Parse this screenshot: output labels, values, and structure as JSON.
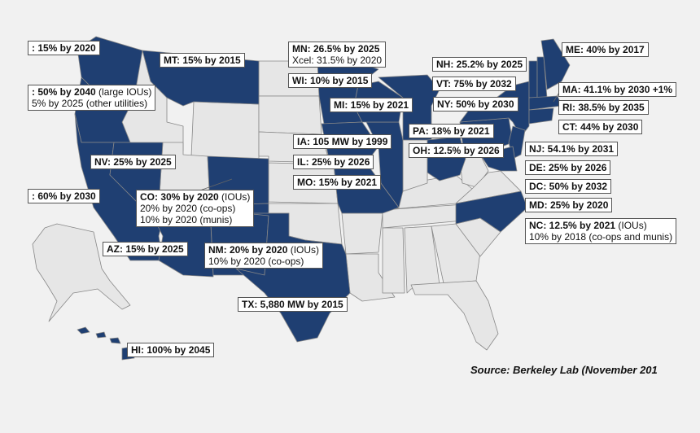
{
  "colors": {
    "rps_state": "#1f3f72",
    "other_state": "#e6e6e6",
    "border": "#888888",
    "background": "#f1f1f1"
  },
  "labels": {
    "wa": ": 15% by 2020",
    "mt": "MT: 15% by 2015",
    "mn_1": "MN: 26.5% by 2025",
    "mn_2": "Xcel: 31.5% by 2020",
    "me": "ME: 40% by 2017",
    "nh": "NH: 25.2% by 2025",
    "wi": "WI: 10% by 2015",
    "vt": "VT: 75% by 2032",
    "or_1a": ": 50% by 2040",
    "or_1b": " (large IOUs)",
    "or_2": "5% by 2025 (other utilities)",
    "mi": "MI: 15% by 2021",
    "ny": "NY: 50% by 2030",
    "ma": "MA: 41.1% by 2030 +1%",
    "ri": "RI: 38.5% by 2035",
    "ct": "CT: 44% by 2030",
    "pa": "PA: 18% by 2021",
    "ia": "IA: 105 MW by 1999",
    "oh": "OH: 12.5% by 2026",
    "nj": "NJ: 54.1% by 2031",
    "nv": "NV: 25% by 2025",
    "il": "IL: 25% by 2026",
    "de": "DE: 25% by 2026",
    "mo": "MO: 15% by 2021",
    "dc": "DC: 50% by 2032",
    "ca": ": 60% by 2030",
    "co_1a": "CO: 30% by 2020",
    "co_1b": " (IOUs)",
    "co_2": "20% by 2020 (co-ops)",
    "co_3": "10% by 2020 (munis)",
    "md": "MD: 25% by 2020",
    "nc_1a": "NC: 12.5% by 2021",
    "nc_1b": " (IOUs)",
    "nc_2": "10% by 2018 (co-ops and munis)",
    "az": "AZ: 15% by 2025",
    "nm_1a": "NM: 20% by 2020",
    "nm_1b": " (IOUs)",
    "nm_2": "10% by 2020 (co-ops)",
    "tx": "TX: 5,880 MW by 2015",
    "hi": "HI: 100% by 2045"
  },
  "source": "Source: Berkeley Lab (November 201"
}
